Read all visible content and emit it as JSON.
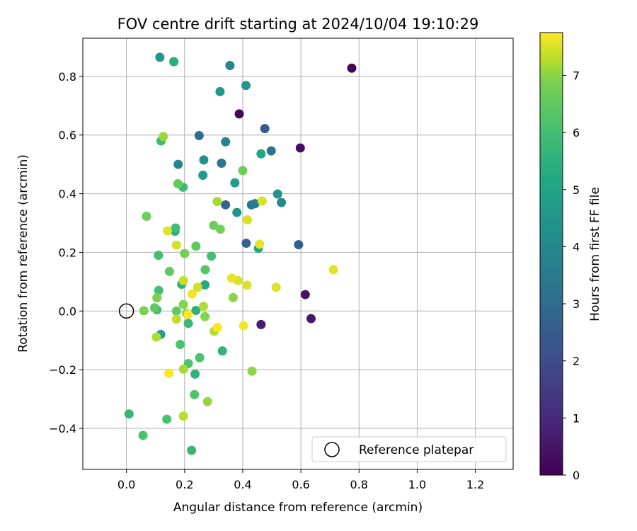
{
  "chart_data": {
    "type": "scatter",
    "title": "FOV centre drift starting at 2024/10/04 19:10:29",
    "xlabel": "Angular distance from reference (arcmin)",
    "ylabel": "Rotation from reference (arcmin)",
    "xlim": [
      -0.15,
      1.33
    ],
    "ylim": [
      -0.54,
      0.93
    ],
    "xticks": [
      0.0,
      0.2,
      0.4,
      0.6,
      0.8,
      1.0,
      1.2
    ],
    "xtick_labels": [
      "0.0",
      "0.2",
      "0.4",
      "0.6",
      "0.8",
      "1.0",
      "1.2"
    ],
    "yticks": [
      -0.4,
      -0.2,
      0.0,
      0.2,
      0.4,
      0.6,
      0.8
    ],
    "ytick_labels": [
      "−0.4",
      "−0.2",
      "0.0",
      "0.2",
      "0.4",
      "0.6",
      "0.8"
    ],
    "grid": true,
    "colormap": "viridis",
    "colorbar": {
      "label": "Hours from first FF file",
      "min": 0,
      "max": 7.75,
      "ticks": [
        0,
        1,
        2,
        3,
        4,
        5,
        6,
        7
      ],
      "tick_labels": [
        "0",
        "1",
        "2",
        "3",
        "4",
        "5",
        "6",
        "7"
      ]
    },
    "reference": {
      "x": 0.0,
      "y": 0.0,
      "label": "Reference platepar"
    },
    "legend": {
      "location": "lower-right",
      "entries": [
        "Reference platepar"
      ]
    },
    "points": [
      {
        "x": 0.775,
        "y": 0.828,
        "h": 0.1
      },
      {
        "x": 0.388,
        "y": 0.672,
        "h": 0.2
      },
      {
        "x": 0.598,
        "y": 0.556,
        "h": 0.3
      },
      {
        "x": 0.615,
        "y": 0.056,
        "h": 0.4
      },
      {
        "x": 0.635,
        "y": -0.026,
        "h": 0.5
      },
      {
        "x": 0.463,
        "y": -0.046,
        "h": 0.6
      },
      {
        "x": 0.476,
        "y": 0.622,
        "h": 2.2
      },
      {
        "x": 0.592,
        "y": 0.226,
        "h": 2.3
      },
      {
        "x": 0.412,
        "y": 0.231,
        "h": 2.4
      },
      {
        "x": 0.341,
        "y": 0.362,
        "h": 2.5
      },
      {
        "x": 0.25,
        "y": 0.598,
        "h": 2.8
      },
      {
        "x": 0.498,
        "y": 0.546,
        "h": 2.9
      },
      {
        "x": 0.327,
        "y": 0.504,
        "h": 3.0
      },
      {
        "x": 0.43,
        "y": 0.362,
        "h": 3.0
      },
      {
        "x": 0.442,
        "y": 0.366,
        "h": 3.2
      },
      {
        "x": 0.341,
        "y": 0.577,
        "h": 3.4
      },
      {
        "x": 0.356,
        "y": 0.837,
        "h": 3.5
      },
      {
        "x": 0.178,
        "y": 0.5,
        "h": 3.5
      },
      {
        "x": 0.533,
        "y": 0.37,
        "h": 3.7
      },
      {
        "x": 0.266,
        "y": 0.515,
        "h": 3.8
      },
      {
        "x": 0.52,
        "y": 0.399,
        "h": 3.9
      },
      {
        "x": 0.38,
        "y": 0.336,
        "h": 3.9
      },
      {
        "x": 0.411,
        "y": 0.769,
        "h": 4.0
      },
      {
        "x": 0.115,
        "y": 0.865,
        "h": 4.1
      },
      {
        "x": 0.322,
        "y": 0.748,
        "h": 4.1
      },
      {
        "x": 0.263,
        "y": 0.463,
        "h": 4.2
      },
      {
        "x": 0.373,
        "y": 0.437,
        "h": 4.3
      },
      {
        "x": 0.118,
        "y": -0.08,
        "h": 4.3
      },
      {
        "x": 0.463,
        "y": 0.536,
        "h": 4.6
      },
      {
        "x": 0.454,
        "y": 0.214,
        "h": 4.6
      },
      {
        "x": 0.27,
        "y": 0.089,
        "h": 4.7
      },
      {
        "x": 0.163,
        "y": 0.85,
        "h": 4.8
      },
      {
        "x": 0.167,
        "y": 0.272,
        "h": 4.8
      },
      {
        "x": 0.239,
        "y": 0.002,
        "h": 4.9
      },
      {
        "x": 0.33,
        "y": -0.136,
        "h": 5.0
      },
      {
        "x": 0.236,
        "y": -0.215,
        "h": 5.0
      },
      {
        "x": 0.19,
        "y": 0.091,
        "h": 5.0
      },
      {
        "x": 0.224,
        "y": -0.475,
        "h": 5.1
      },
      {
        "x": 0.009,
        "y": -0.351,
        "h": 5.1
      },
      {
        "x": 0.213,
        "y": -0.042,
        "h": 5.2
      },
      {
        "x": 0.119,
        "y": 0.58,
        "h": 5.3
      },
      {
        "x": 0.195,
        "y": 0.422,
        "h": 5.3
      },
      {
        "x": 0.169,
        "y": 0.283,
        "h": 5.3
      },
      {
        "x": 0.292,
        "y": 0.187,
        "h": 5.4
      },
      {
        "x": 0.11,
        "y": 0.19,
        "h": 5.4
      },
      {
        "x": 0.111,
        "y": 0.07,
        "h": 5.4
      },
      {
        "x": 0.105,
        "y": 0.004,
        "h": 5.4
      },
      {
        "x": 0.139,
        "y": -0.369,
        "h": 5.5
      },
      {
        "x": 0.057,
        "y": -0.424,
        "h": 5.5
      },
      {
        "x": 0.185,
        "y": -0.114,
        "h": 5.5
      },
      {
        "x": 0.252,
        "y": -0.159,
        "h": 5.5
      },
      {
        "x": 0.213,
        "y": -0.179,
        "h": 5.6
      },
      {
        "x": 0.234,
        "y": -0.285,
        "h": 5.6
      },
      {
        "x": 0.271,
        "y": 0.141,
        "h": 5.7
      },
      {
        "x": 0.239,
        "y": 0.221,
        "h": 5.8
      },
      {
        "x": 0.148,
        "y": 0.135,
        "h": 5.8
      },
      {
        "x": 0.097,
        "y": 0.011,
        "h": 5.8
      },
      {
        "x": 0.172,
        "y": 0.0,
        "h": 5.8
      },
      {
        "x": 0.177,
        "y": 0.434,
        "h": 5.9
      },
      {
        "x": 0.4,
        "y": 0.479,
        "h": 6.0
      },
      {
        "x": 0.069,
        "y": 0.323,
        "h": 6.0
      },
      {
        "x": 0.3,
        "y": 0.292,
        "h": 6.0
      },
      {
        "x": 0.323,
        "y": 0.279,
        "h": 6.1
      },
      {
        "x": 0.2,
        "y": 0.196,
        "h": 6.1
      },
      {
        "x": 0.105,
        "y": 0.045,
        "h": 6.2
      },
      {
        "x": 0.06,
        "y": 0.001,
        "h": 6.2
      },
      {
        "x": 0.207,
        "y": -0.008,
        "h": 6.2
      },
      {
        "x": 0.27,
        "y": -0.019,
        "h": 6.3
      },
      {
        "x": 0.196,
        "y": 0.022,
        "h": 6.3
      },
      {
        "x": 0.367,
        "y": 0.046,
        "h": 6.4
      },
      {
        "x": 0.432,
        "y": -0.205,
        "h": 6.4
      },
      {
        "x": 0.279,
        "y": -0.309,
        "h": 6.5
      },
      {
        "x": 0.127,
        "y": 0.595,
        "h": 6.6
      },
      {
        "x": 0.312,
        "y": 0.373,
        "h": 6.7
      },
      {
        "x": 0.196,
        "y": -0.198,
        "h": 6.7
      },
      {
        "x": 0.265,
        "y": 0.016,
        "h": 6.8
      },
      {
        "x": 0.302,
        "y": -0.069,
        "h": 6.8
      },
      {
        "x": 0.103,
        "y": -0.089,
        "h": 6.8
      },
      {
        "x": 0.196,
        "y": -0.358,
        "h": 6.9
      },
      {
        "x": 0.172,
        "y": -0.028,
        "h": 7.0
      },
      {
        "x": 0.196,
        "y": 0.104,
        "h": 7.1
      },
      {
        "x": 0.172,
        "y": 0.225,
        "h": 7.2
      },
      {
        "x": 0.245,
        "y": 0.081,
        "h": 7.2
      },
      {
        "x": 0.467,
        "y": 0.375,
        "h": 7.3
      },
      {
        "x": 0.416,
        "y": 0.311,
        "h": 7.3
      },
      {
        "x": 0.515,
        "y": 0.081,
        "h": 7.3
      },
      {
        "x": 0.384,
        "y": 0.104,
        "h": 7.3
      },
      {
        "x": 0.415,
        "y": 0.088,
        "h": 7.3
      },
      {
        "x": 0.141,
        "y": 0.273,
        "h": 7.4
      },
      {
        "x": 0.712,
        "y": 0.141,
        "h": 7.4
      },
      {
        "x": 0.362,
        "y": 0.112,
        "h": 7.5
      },
      {
        "x": 0.458,
        "y": 0.228,
        "h": 7.5
      },
      {
        "x": 0.226,
        "y": 0.058,
        "h": 7.6
      },
      {
        "x": 0.403,
        "y": -0.05,
        "h": 7.6
      },
      {
        "x": 0.313,
        "y": -0.056,
        "h": 7.7
      },
      {
        "x": 0.146,
        "y": -0.212,
        "h": 7.7
      },
      {
        "x": 0.212,
        "y": -0.011,
        "h": 7.7
      }
    ]
  }
}
